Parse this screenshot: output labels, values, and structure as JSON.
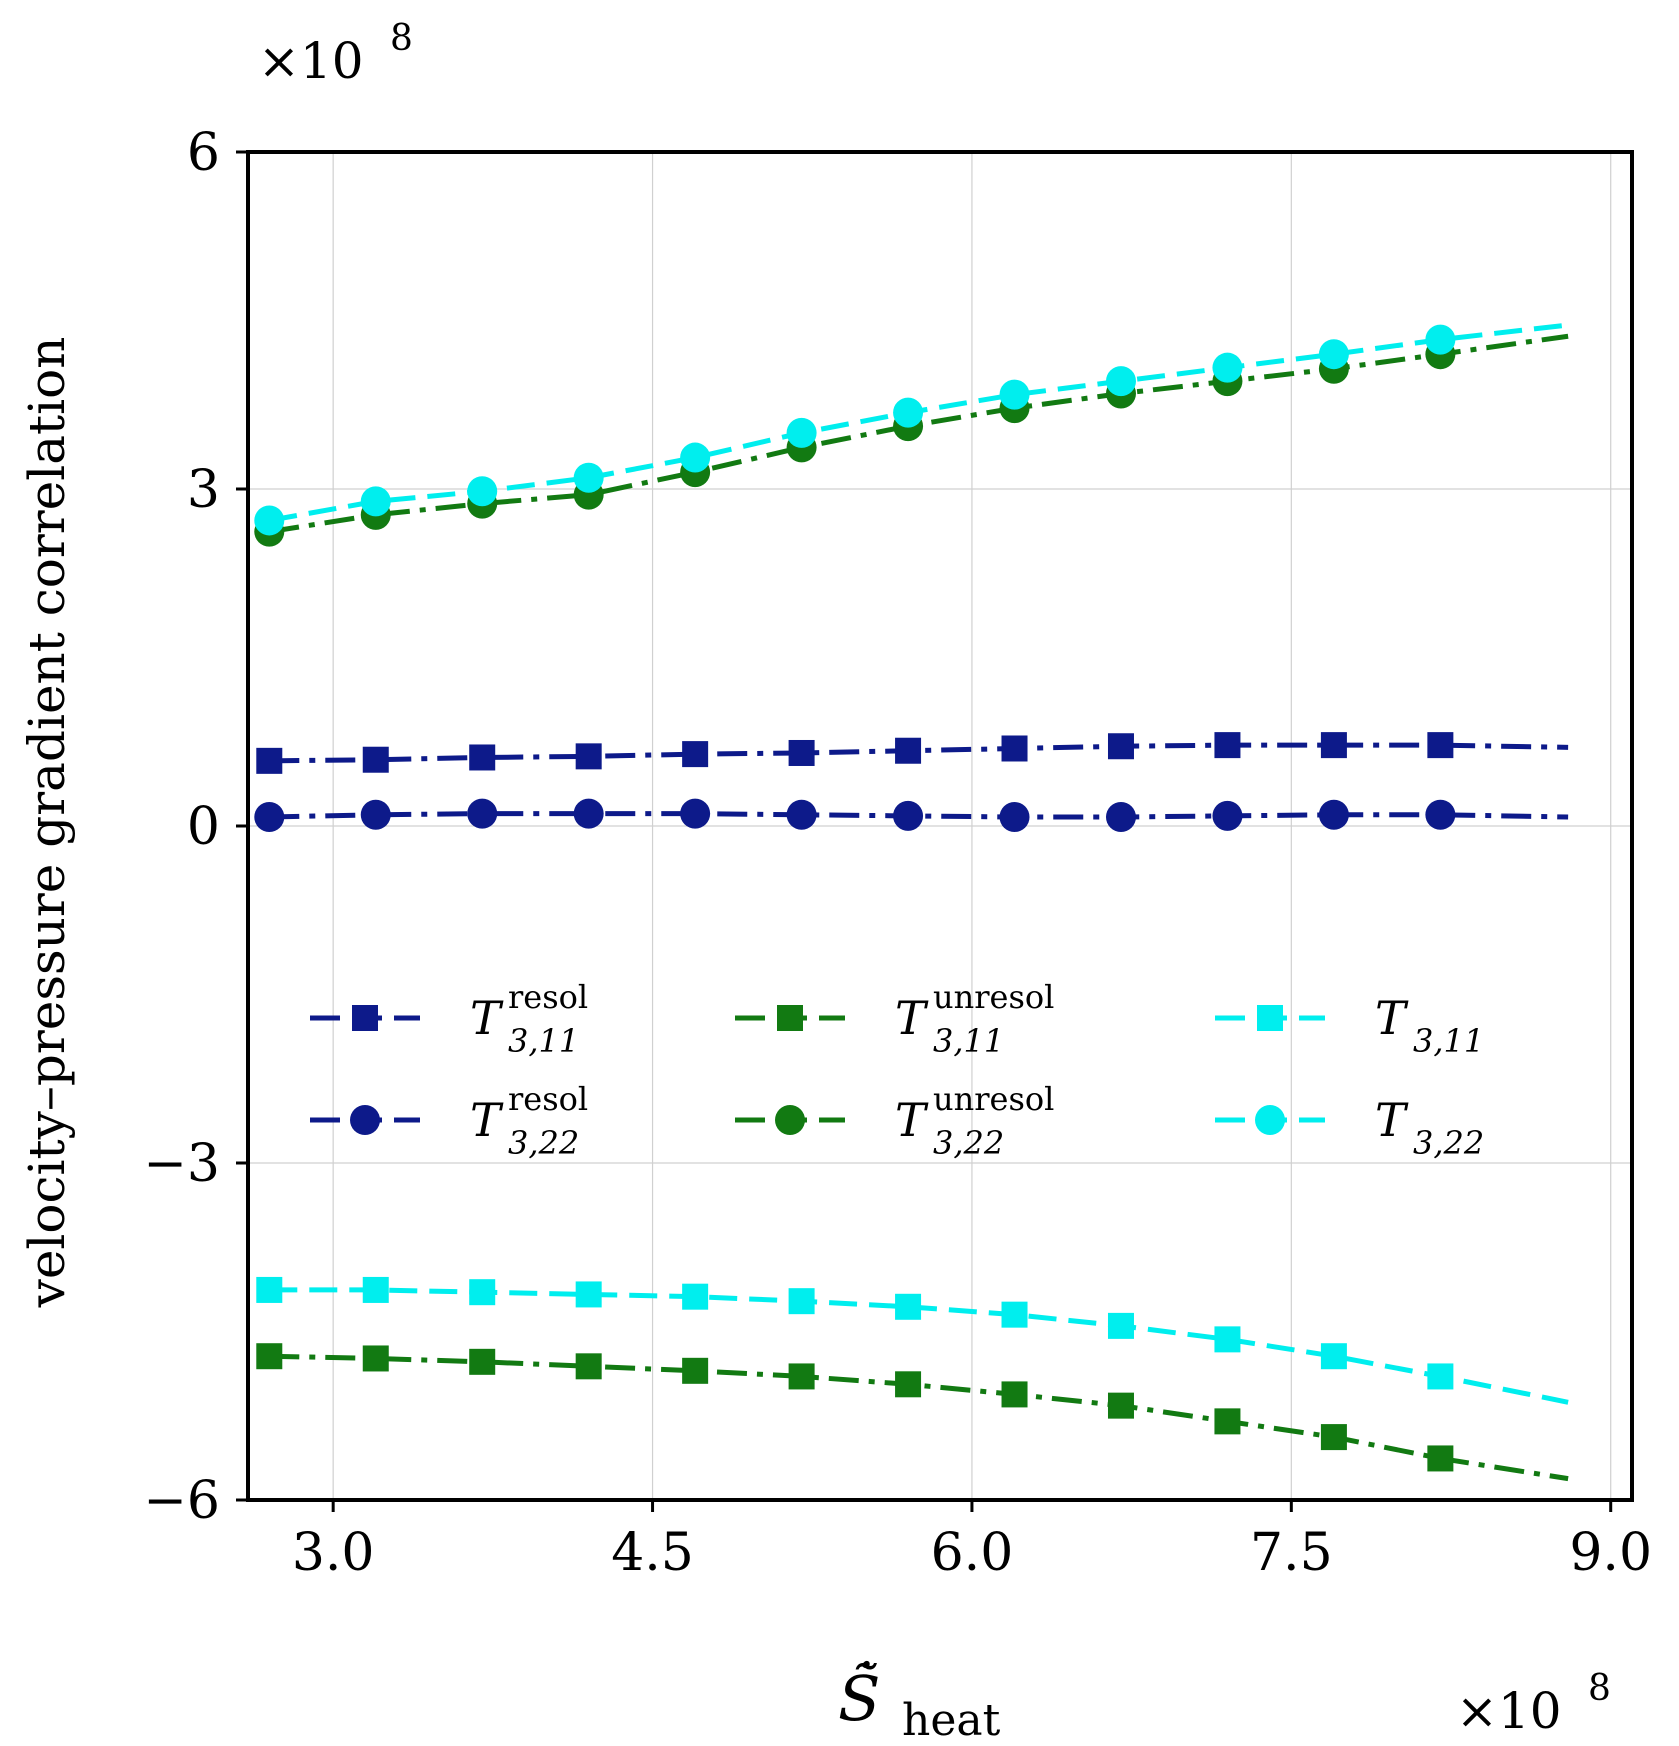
{
  "chart_data": {
    "type": "line",
    "title": "",
    "xlabel": "S̃̇",
    "xlabel_sub": "heat",
    "ylabel": "velocity–pressure gradient correlation",
    "x_multiplier": "×10",
    "x_multiplier_exp": "8",
    "y_multiplier": "×10",
    "y_multiplier_exp": "8",
    "xlim": [
      2.6,
      9.1
    ],
    "ylim": [
      -6,
      6
    ],
    "xticks": [
      3.0,
      4.5,
      6.0,
      7.5,
      9.0
    ],
    "xtick_labels": [
      "3.0",
      "4.5",
      "6.0",
      "7.5",
      "9.0"
    ],
    "yticks": [
      -6,
      -3,
      0,
      3,
      6
    ],
    "ytick_labels": [
      "−6",
      "−3",
      "0",
      "3",
      "6"
    ],
    "grid": true,
    "x": [
      2.7,
      3.2,
      3.7,
      4.2,
      4.7,
      5.2,
      5.7,
      6.2,
      6.7,
      7.2,
      7.7,
      8.2,
      8.8
    ],
    "series": [
      {
        "name": "T3,11 resol",
        "base": "T",
        "sup": "resol",
        "sub": "3,11",
        "color": "#0d1a8a",
        "marker": "square",
        "dash": "dashdot",
        "values": [
          0.58,
          0.59,
          0.61,
          0.62,
          0.64,
          0.65,
          0.67,
          0.69,
          0.71,
          0.72,
          0.72,
          0.72,
          0.7
        ]
      },
      {
        "name": "T3,22 resol",
        "base": "T",
        "sup": "resol",
        "sub": "3,22",
        "color": "#0d1a8a",
        "marker": "circle",
        "dash": "dashdot",
        "values": [
          0.08,
          0.1,
          0.11,
          0.11,
          0.11,
          0.1,
          0.09,
          0.08,
          0.08,
          0.09,
          0.1,
          0.1,
          0.08
        ]
      },
      {
        "name": "T3,11 unresol",
        "base": "T",
        "sup": "unresol",
        "sub": "3,11",
        "color": "#127a12",
        "marker": "square",
        "dash": "dashdot",
        "values": [
          -4.72,
          -4.74,
          -4.77,
          -4.81,
          -4.85,
          -4.9,
          -4.97,
          -5.06,
          -5.16,
          -5.3,
          -5.44,
          -5.63,
          -5.81
        ]
      },
      {
        "name": "T3,22 unresol",
        "base": "T",
        "sup": "unresol",
        "sub": "3,22",
        "color": "#127a12",
        "marker": "circle",
        "dash": "dashdot",
        "values": [
          2.62,
          2.77,
          2.87,
          2.95,
          3.15,
          3.37,
          3.56,
          3.72,
          3.85,
          3.96,
          4.07,
          4.2,
          4.36
        ]
      },
      {
        "name": "T3,11",
        "base": "T",
        "sup": "",
        "sub": "3,11",
        "color": "#00eeee",
        "marker": "square",
        "dash": "dashed",
        "values": [
          -4.13,
          -4.13,
          -4.15,
          -4.17,
          -4.19,
          -4.23,
          -4.28,
          -4.35,
          -4.45,
          -4.57,
          -4.72,
          -4.9,
          -5.13
        ]
      },
      {
        "name": "T3,22",
        "base": "T",
        "sup": "",
        "sub": "3,22",
        "color": "#00eeee",
        "marker": "circle",
        "dash": "dashed",
        "values": [
          2.72,
          2.89,
          2.98,
          3.1,
          3.28,
          3.5,
          3.68,
          3.84,
          3.96,
          4.08,
          4.2,
          4.33,
          4.46
        ]
      }
    ],
    "legend": {
      "location": "center",
      "columns": 3
    }
  }
}
